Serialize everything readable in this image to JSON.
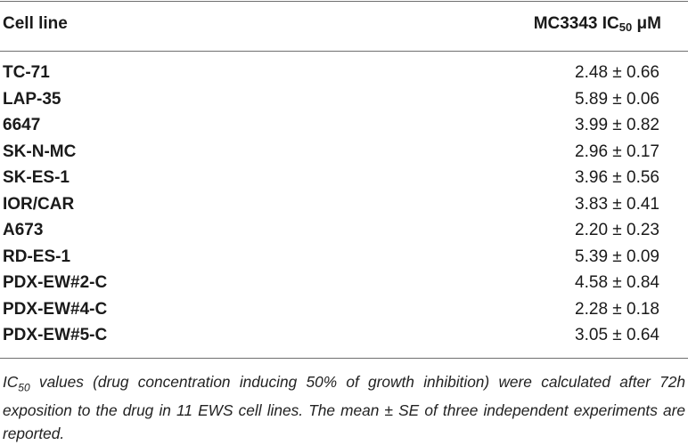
{
  "header": {
    "cell_line_label": "Cell line",
    "value_label_prefix": "MC3343 IC",
    "value_label_sub": "50",
    "value_label_suffix": " μM"
  },
  "rows": [
    {
      "cell_line": "TC-71",
      "value": "2.48 ± 0.66"
    },
    {
      "cell_line": "LAP-35",
      "value": "5.89 ± 0.06"
    },
    {
      "cell_line": "6647",
      "value": "3.99 ± 0.82"
    },
    {
      "cell_line": "SK-N-MC",
      "value": "2.96 ± 0.17"
    },
    {
      "cell_line": "SK-ES-1",
      "value": "3.96 ± 0.56"
    },
    {
      "cell_line": "IOR/CAR",
      "value": "3.83 ± 0.41"
    },
    {
      "cell_line": "A673",
      "value": "2.20 ± 0.23"
    },
    {
      "cell_line": "RD-ES-1",
      "value": "5.39 ± 0.09"
    },
    {
      "cell_line": "PDX-EW#2-C",
      "value": "4.58 ± 0.84"
    },
    {
      "cell_line": "PDX-EW#4-C",
      "value": "2.28 ± 0.18"
    },
    {
      "cell_line": "PDX-EW#5-C",
      "value": "3.05 ± 0.64"
    }
  ],
  "footnote": {
    "prefix": "IC",
    "sub": "50",
    "text": " values (drug concentration inducing 50% of growth inhibition) were calculated after 72h exposition to the drug in 11 EWS cell lines. The mean ± SE of three independent experiments are reported."
  }
}
